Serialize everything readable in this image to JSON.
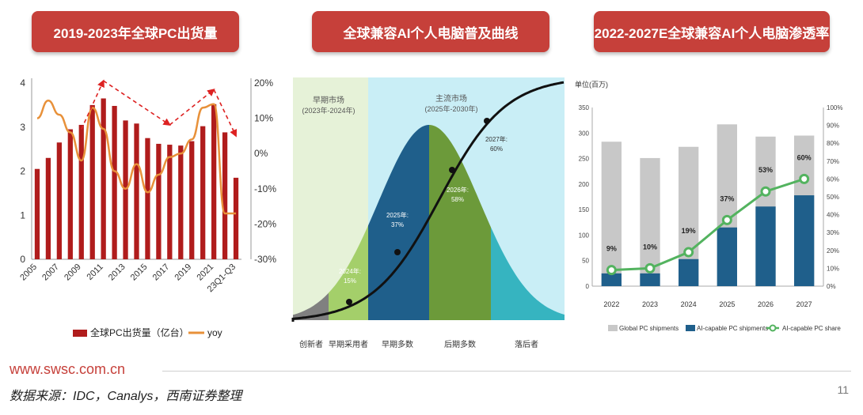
{
  "banners": {
    "left": "2019-2023年全球PC出货量",
    "middle": "全球兼容AI个人电脑普及曲线",
    "right": "2022-2027E全球兼容AI个人电脑渗透率"
  },
  "footer": {
    "url": "www.swsc.com.cn",
    "source": "数据来源：IDC，Canalys，西南证券整理",
    "page": "11"
  },
  "colors": {
    "banner": "#c6403a",
    "bar_red": "#b01c1c",
    "line_orange": "#e8913a",
    "gray_bar": "#c8c8c8",
    "blue_bar": "#1f5f8b",
    "green_line": "#53b35f"
  },
  "chart_data": [
    {
      "type": "bar",
      "categories": [
        "2005",
        "2006",
        "2007",
        "2008",
        "2009",
        "2010",
        "2011",
        "2012",
        "2013",
        "2014",
        "2015",
        "2016",
        "2017",
        "2018",
        "2019",
        "2020",
        "2021",
        "2022",
        "23Q1-Q3"
      ],
      "x_tick_labels": [
        "2005",
        "2007",
        "2009",
        "2011",
        "2013",
        "2015",
        "2017",
        "2019",
        "2021",
        "23Q1-Q3"
      ],
      "series": [
        {
          "name": "全球PC出货量（亿台）",
          "type": "bar",
          "axis": "left",
          "values": [
            2.05,
            2.3,
            2.65,
            2.95,
            3.05,
            3.5,
            3.65,
            3.48,
            3.15,
            3.08,
            2.75,
            2.62,
            2.6,
            2.58,
            2.68,
            3.02,
            3.52,
            2.88,
            1.85
          ]
        },
        {
          "name": "yoy",
          "type": "line",
          "axis": "right",
          "values": [
            10,
            15,
            11,
            6,
            -2,
            13,
            7,
            -5,
            -10,
            -3,
            -11,
            -6,
            -1,
            0,
            4,
            13,
            14,
            -17,
            -17
          ]
        }
      ],
      "y_left": {
        "ticks": [
          0,
          1,
          2,
          3,
          4
        ],
        "ylim": [
          0,
          4
        ]
      },
      "y_right": {
        "ticks": [
          "20%",
          "10%",
          "0%",
          "-10%",
          "-20%",
          "-30%"
        ],
        "values": [
          20,
          10,
          0,
          -10,
          -20,
          -30
        ],
        "ylim": [
          -30,
          20
        ]
      },
      "legend": [
        "全球PC出货量（亿台）",
        "yoy"
      ],
      "trend_arrows": [
        {
          "from": [
            "2009",
            2.95
          ],
          "to": [
            "2011",
            4.05
          ]
        },
        {
          "from": [
            "2011",
            4.05
          ],
          "to": [
            "2017",
            3.05
          ]
        },
        {
          "from": [
            "2017",
            3.05
          ],
          "to": [
            "2021",
            3.85
          ]
        },
        {
          "from": [
            "2021",
            3.85
          ],
          "to": [
            "23Q1-Q3",
            2.8
          ]
        }
      ]
    },
    {
      "type": "area",
      "description_labels": {
        "early_market": "早期市场",
        "early_period": "(2023年-2024年)",
        "main_market": "主流市场",
        "main_period": "(2025年-2030年)",
        "pt_2024": "2024年:",
        "pt_2024_val": "15%",
        "pt_2025": "2025年:",
        "pt_2025_val": "37%",
        "pt_2026": "2026年:",
        "pt_2026_val": "58%",
        "pt_2027": "2027年:",
        "pt_2027_val": "60%"
      },
      "segments": [
        "创新者",
        "早期采用者",
        "早期多数",
        "后期多数",
        "落后者"
      ],
      "segment_colors": [
        "#808080",
        "#a4cf6a",
        "#1f5f8b",
        "#6c9a3a",
        "#36b4c0"
      ]
    },
    {
      "type": "bar",
      "categories": [
        "2022",
        "2023",
        "2024",
        "2025",
        "2026",
        "2027"
      ],
      "series": [
        {
          "name": "Global PC shipments",
          "type": "bar",
          "values": [
            283,
            251,
            273,
            317,
            293,
            295
          ]
        },
        {
          "name": "AI-capable PC shipments",
          "type": "bar",
          "values": [
            25,
            25,
            53,
            115,
            156,
            178
          ]
        },
        {
          "name": "AI-capable PC share",
          "type": "line",
          "axis": "right",
          "values": [
            9,
            10,
            19,
            37,
            53,
            60
          ]
        }
      ],
      "data_labels": [
        "9%",
        "10%",
        "19%",
        "37%",
        "53%",
        "60%"
      ],
      "unit_label": "单位(百万)",
      "y_left": {
        "ticks": [
          0,
          50,
          100,
          150,
          200,
          250,
          300,
          350
        ],
        "ylim": [
          0,
          350
        ]
      },
      "y_right": {
        "ticks": [
          "0%",
          "10%",
          "20%",
          "30%",
          "40%",
          "50%",
          "60%",
          "70%",
          "80%",
          "90%",
          "100%"
        ],
        "ylim": [
          0,
          100
        ]
      },
      "legend": [
        "Global PC shipments",
        "AI-capable PC shipments",
        "AI-capable PC share"
      ]
    }
  ]
}
